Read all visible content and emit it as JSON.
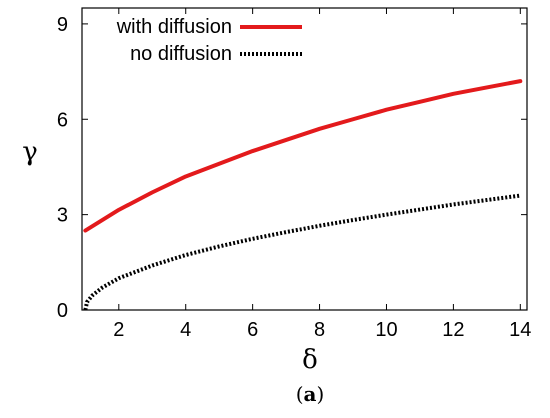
{
  "chart_data": {
    "type": "line",
    "xlabel": "δ",
    "ylabel": "γ",
    "xlim": [
      0.9,
      14.2
    ],
    "ylim": [
      0,
      9.5
    ],
    "xticks": [
      2,
      4,
      6,
      8,
      10,
      12,
      14
    ],
    "yticks": [
      0,
      3,
      6,
      9
    ],
    "grid": false,
    "legend_position": "top-left",
    "series": [
      {
        "name": "with diffusion",
        "color": "#e31a1c",
        "style": "solid",
        "x": [
          1,
          2,
          3,
          4,
          5,
          6,
          7,
          8,
          9,
          10,
          11,
          12,
          13,
          14
        ],
        "y": [
          2.5,
          3.15,
          3.7,
          4.2,
          4.6,
          5.0,
          5.35,
          5.7,
          6.0,
          6.3,
          6.55,
          6.8,
          7.0,
          7.2
        ]
      },
      {
        "name": "no diffusion",
        "color": "#000000",
        "style": "dotted",
        "x": [
          1,
          1.05,
          1.2,
          1.5,
          2,
          3,
          4,
          5,
          6,
          7,
          8,
          9,
          10,
          11,
          12,
          13,
          14
        ],
        "y": [
          0,
          0.25,
          0.45,
          0.7,
          1.0,
          1.4,
          1.73,
          2.0,
          2.24,
          2.45,
          2.65,
          2.83,
          3.0,
          3.16,
          3.32,
          3.46,
          3.6
        ]
      }
    ]
  },
  "caption": {
    "open": "(",
    "label": "a",
    "close": ")"
  }
}
